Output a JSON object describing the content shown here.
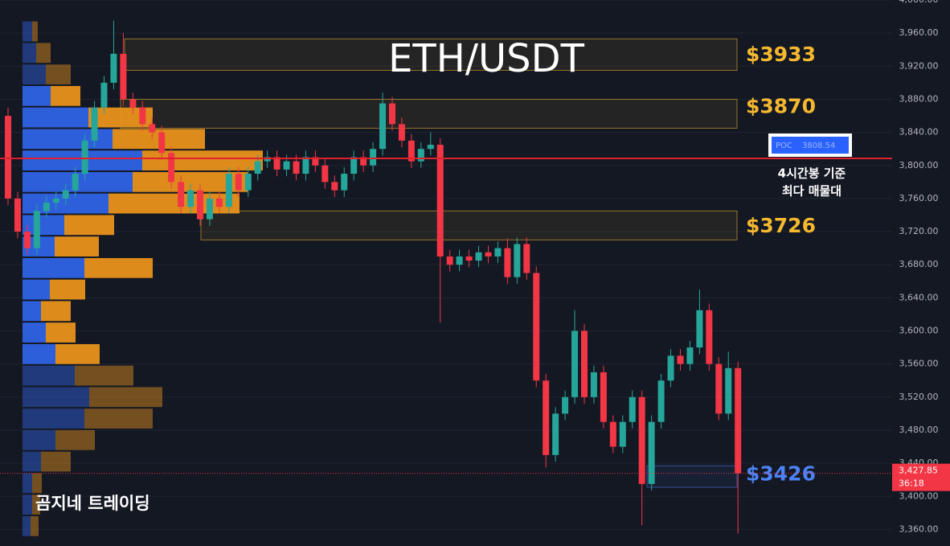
{
  "chart_data": {
    "type": "candlestick",
    "title": "ETH/USDT",
    "watermark": "곰지네 트레이딩",
    "ylim": [
      3340,
      4000
    ],
    "yticks": [
      {
        "value": 3360,
        "label": "3,360.00"
      },
      {
        "value": 3400,
        "label": "3,400.00"
      },
      {
        "value": 3440,
        "label": "3,440.00"
      },
      {
        "value": 3480,
        "label": "3,480.00"
      },
      {
        "value": 3520,
        "label": "3,520.00"
      },
      {
        "value": 3560,
        "label": "3,560.00"
      },
      {
        "value": 3600,
        "label": "3,600.00"
      },
      {
        "value": 3640,
        "label": "3,640.00"
      },
      {
        "value": 3680,
        "label": "3,680.00"
      },
      {
        "value": 3720,
        "label": "3,720.00"
      },
      {
        "value": 3760,
        "label": "3,760.00"
      },
      {
        "value": 3800,
        "label": "3,800.00"
      },
      {
        "value": 3840,
        "label": "3,840.00"
      },
      {
        "value": 3880,
        "label": "3,880.00"
      },
      {
        "value": 3920,
        "label": "3,920.00"
      },
      {
        "value": 3960,
        "label": "3,960.00"
      },
      {
        "value": 4000,
        "label": "4,000.00"
      }
    ],
    "grid": true,
    "up_color": "#26a69a",
    "down_color": "#f23645",
    "open": [
      3860,
      3760,
      3720,
      3700,
      3745,
      3755,
      3760,
      3770,
      3790,
      3830,
      3870,
      3900,
      3935,
      3880,
      3870,
      3850,
      3840,
      3815,
      3780,
      3750,
      3770,
      3735,
      3760,
      3750,
      3790,
      3770,
      3790,
      3805,
      3810,
      3795,
      3805,
      3790,
      3810,
      3800,
      3780,
      3770,
      3790,
      3810,
      3800,
      3820,
      3875,
      3850,
      3830,
      3805,
      3820,
      3825,
      3690,
      3680,
      3690,
      3685,
      3695,
      3690,
      3700,
      3665,
      3705,
      3670,
      3540,
      3450,
      3500,
      3520,
      3600,
      3520,
      3550,
      3490,
      3460,
      3490,
      3520,
      3415,
      3490,
      3540,
      3570,
      3560,
      3580,
      3625,
      3560,
      3500,
      3555
    ],
    "high": [
      3870,
      3768,
      3728,
      3753,
      3763,
      3768,
      3778,
      3798,
      3838,
      3878,
      3908,
      3975,
      3960,
      3888,
      3878,
      3858,
      3848,
      3823,
      3788,
      3778,
      3778,
      3768,
      3768,
      3798,
      3798,
      3798,
      3813,
      3818,
      3818,
      3813,
      3813,
      3818,
      3818,
      3808,
      3788,
      3798,
      3818,
      3818,
      3828,
      3888,
      3883,
      3858,
      3838,
      3828,
      3840,
      3833,
      3698,
      3698,
      3698,
      3703,
      3703,
      3708,
      3712,
      3713,
      3713,
      3678,
      3548,
      3508,
      3528,
      3625,
      3608,
      3558,
      3558,
      3498,
      3498,
      3528,
      3528,
      3498,
      3548,
      3578,
      3578,
      3588,
      3650,
      3633,
      3568,
      3575,
      3563
    ],
    "low": [
      3752,
      3712,
      3692,
      3692,
      3737,
      3747,
      3752,
      3762,
      3782,
      3822,
      3862,
      3892,
      3872,
      3862,
      3842,
      3832,
      3807,
      3772,
      3742,
      3742,
      3727,
      3727,
      3742,
      3742,
      3762,
      3762,
      3782,
      3797,
      3787,
      3787,
      3782,
      3782,
      3792,
      3772,
      3762,
      3762,
      3782,
      3792,
      3792,
      3812,
      3842,
      3822,
      3797,
      3797,
      3812,
      3610,
      3672,
      3672,
      3677,
      3677,
      3682,
      3682,
      3657,
      3657,
      3662,
      3532,
      3435,
      3442,
      3492,
      3512,
      3512,
      3512,
      3482,
      3452,
      3452,
      3482,
      3365,
      3407,
      3482,
      3532,
      3552,
      3552,
      3572,
      3552,
      3492,
      3492,
      3355
    ],
    "close": [
      3760,
      3720,
      3700,
      3745,
      3755,
      3760,
      3770,
      3790,
      3830,
      3870,
      3900,
      3935,
      3880,
      3870,
      3850,
      3840,
      3815,
      3780,
      3750,
      3770,
      3735,
      3760,
      3750,
      3790,
      3770,
      3790,
      3805,
      3810,
      3795,
      3805,
      3790,
      3810,
      3800,
      3780,
      3770,
      3790,
      3810,
      3800,
      3820,
      3875,
      3850,
      3830,
      3805,
      3820,
      3825,
      3690,
      3680,
      3690,
      3685,
      3695,
      3690,
      3700,
      3665,
      3705,
      3670,
      3540,
      3450,
      3500,
      3520,
      3600,
      3520,
      3550,
      3490,
      3460,
      3490,
      3520,
      3415,
      3490,
      3540,
      3570,
      3560,
      3580,
      3625,
      3560,
      3500,
      3555,
      3427.85
    ],
    "volume_profile": {
      "bins": [
        3351,
        3377,
        3403,
        3429,
        3455,
        3481,
        3507,
        3533,
        3559,
        3585,
        3611,
        3637,
        3663,
        3689,
        3715,
        3741,
        3767,
        3793,
        3819,
        3845,
        3871,
        3897,
        3923,
        3949,
        3975
      ],
      "buy": [
        10,
        12,
        12,
        23,
        41,
        77,
        83,
        65,
        41,
        29,
        23,
        34,
        77,
        40,
        52,
        107,
        137,
        149,
        112,
        82,
        35,
        29,
        17,
        12
      ],
      "sell": [
        10,
        10,
        12,
        37,
        49,
        85,
        91,
        73,
        55,
        37,
        37,
        44,
        85,
        55,
        62,
        163,
        143,
        150,
        115,
        80,
        37,
        31,
        18,
        7
      ],
      "value_area": [
        3559,
        3897
      ],
      "buy_color": "#2f63e6",
      "sell_color": "#e8921c"
    },
    "zones": [
      {
        "level": 3933,
        "label": "$3933",
        "top": 3953,
        "bottom": 3915,
        "color": "#f5b82e"
      },
      {
        "level": 3870,
        "label": "$3870",
        "top": 3880,
        "bottom": 3845,
        "color": "#f5b82e"
      },
      {
        "level": 3726,
        "label": "$3726",
        "top": 3745,
        "bottom": 3710,
        "color": "#f5b82e"
      },
      {
        "level": 3426,
        "label": "$3426",
        "top": 3437,
        "bottom": 3411,
        "color": "#4c82f5"
      }
    ],
    "poc": {
      "label": "POC",
      "value": 3808.54,
      "color": "#e0202a"
    },
    "annotation": [
      "4시간봉 기준",
      "최다 매물대"
    ],
    "last_price": {
      "value": 3427.85,
      "label": "3,427.85"
    },
    "countdown": "36:18"
  }
}
